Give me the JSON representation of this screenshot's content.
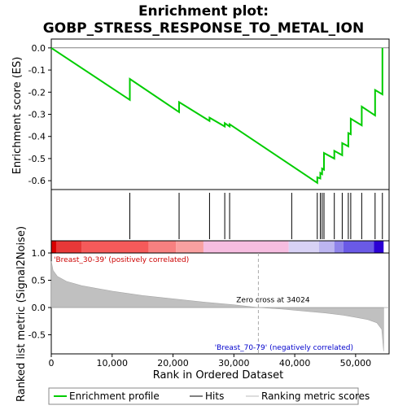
{
  "chart_data": {
    "type": "line",
    "title_line1": "Enrichment plot:",
    "title_line2": "GOBP_STRESS_RESPONSE_TO_METAL_ION",
    "es_panel": {
      "ylabel": "Enrichment score (ES)",
      "ylim": [
        -0.64,
        0.04
      ],
      "yticks": [
        0.0,
        -0.1,
        -0.2,
        -0.3,
        -0.4,
        -0.5,
        -0.6
      ],
      "ytick_labels": [
        "0.0",
        "-0.1",
        "-0.2",
        "-0.3",
        "-0.4",
        "-0.5",
        "-0.6"
      ],
      "curve": [
        [
          0,
          0.0
        ],
        [
          12900,
          -0.235
        ],
        [
          12900,
          -0.14
        ],
        [
          21000,
          -0.29
        ],
        [
          21000,
          -0.245
        ],
        [
          26000,
          -0.33
        ],
        [
          26000,
          -0.315
        ],
        [
          28500,
          -0.355
        ],
        [
          28500,
          -0.34
        ],
        [
          29300,
          -0.355
        ],
        [
          29300,
          -0.345
        ],
        [
          43700,
          -0.61
        ],
        [
          43700,
          -0.585
        ],
        [
          44200,
          -0.59
        ],
        [
          44200,
          -0.565
        ],
        [
          44500,
          -0.57
        ],
        [
          44500,
          -0.545
        ],
        [
          44800,
          -0.55
        ],
        [
          44800,
          -0.475
        ],
        [
          46500,
          -0.5
        ],
        [
          46500,
          -0.465
        ],
        [
          47800,
          -0.485
        ],
        [
          47800,
          -0.43
        ],
        [
          48800,
          -0.445
        ],
        [
          48800,
          -0.385
        ],
        [
          49200,
          -0.39
        ],
        [
          49200,
          -0.32
        ],
        [
          51000,
          -0.35
        ],
        [
          51000,
          -0.265
        ],
        [
          53200,
          -0.305
        ],
        [
          53200,
          -0.19
        ],
        [
          54400,
          -0.21
        ],
        [
          54400,
          0.0
        ]
      ]
    },
    "hits": [
      12900,
      21000,
      26000,
      28500,
      29300,
      39500,
      43700,
      44200,
      44500,
      44800,
      46500,
      47800,
      48800,
      49200,
      51000,
      53200,
      54400
    ],
    "metric_panel": {
      "ylabel": "Ranked list metric (Signal2Noise)",
      "ylim": [
        -0.85,
        1.0
      ],
      "yticks": [
        1.0,
        0.5,
        0.0,
        -0.5
      ],
      "ytick_labels": [
        "1.0",
        "0.5",
        "0.0",
        "-0.5"
      ],
      "curve": [
        [
          0,
          0.85
        ],
        [
          300,
          0.68
        ],
        [
          1000,
          0.57
        ],
        [
          2500,
          0.48
        ],
        [
          5000,
          0.4
        ],
        [
          10000,
          0.3
        ],
        [
          15000,
          0.22
        ],
        [
          20000,
          0.16
        ],
        [
          25000,
          0.1
        ],
        [
          30000,
          0.05
        ],
        [
          34024,
          0.0
        ],
        [
          38000,
          -0.03
        ],
        [
          42000,
          -0.07
        ],
        [
          45000,
          -0.1
        ],
        [
          48000,
          -0.14
        ],
        [
          50000,
          -0.18
        ],
        [
          52000,
          -0.22
        ],
        [
          53500,
          -0.28
        ],
        [
          54300,
          -0.4
        ],
        [
          54600,
          -0.8
        ]
      ],
      "zero_cross_label": "Zero cross at 34024",
      "zero_cross": 34024,
      "pos_label": "'Breast_30-39' (positively correlated)",
      "neg_label": "'Breast_70-79' (negatively correlated)"
    },
    "x_axis": {
      "xlabel": "Rank in Ordered Dataset",
      "xlim": [
        0,
        55500
      ],
      "xticks": [
        0,
        10000,
        20000,
        30000,
        40000,
        50000
      ],
      "xtick_labels": [
        "0",
        "10,000",
        "20,000",
        "30,000",
        "40,000",
        "50,000"
      ]
    },
    "heatbar": [
      {
        "from": 0,
        "to": 800,
        "color": "#d90000"
      },
      {
        "from": 800,
        "to": 5000,
        "color": "#e83838"
      },
      {
        "from": 5000,
        "to": 16000,
        "color": "#f55a5a"
      },
      {
        "from": 16000,
        "to": 20500,
        "color": "#f78080"
      },
      {
        "from": 20500,
        "to": 25000,
        "color": "#f9a0a0"
      },
      {
        "from": 25000,
        "to": 39000,
        "color": "#f6bde0"
      },
      {
        "from": 39000,
        "to": 44000,
        "color": "#d8d2f5"
      },
      {
        "from": 44000,
        "to": 46500,
        "color": "#bcb5f0"
      },
      {
        "from": 46500,
        "to": 48000,
        "color": "#8f84ea"
      },
      {
        "from": 48000,
        "to": 53000,
        "color": "#6a5ae6"
      },
      {
        "from": 53000,
        "to": 54600,
        "color": "#2b00d4"
      }
    ],
    "colors": {
      "es_line": "#00cc00",
      "hit_line": "#000000",
      "metric_fill": "#c0c0c0",
      "pos_text": "#cc0000",
      "neg_text": "#0000cc"
    },
    "legend": [
      {
        "label": "Enrichment profile",
        "kind": "green-line"
      },
      {
        "label": "Hits",
        "kind": "black-line"
      },
      {
        "label": "Ranking metric scores",
        "kind": "gray-line"
      }
    ]
  }
}
